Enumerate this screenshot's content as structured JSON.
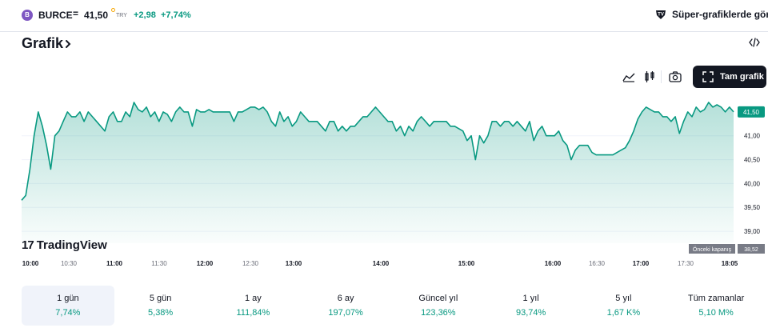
{
  "ticker": {
    "logo_text": "B",
    "symbol": "BURCE",
    "separator": "=",
    "price": "41,50",
    "currency": "TRY",
    "change": "+2,98",
    "change_pct": "+7,74%",
    "up_color": "#089981"
  },
  "super_charts_label": "Süper-grafiklerde görün",
  "section_title": "Grafik",
  "toolbar": {
    "full_chart_label": "Tam grafik",
    "icons": [
      "area-chart-icon",
      "candles-icon",
      "camera-icon",
      "fullscreen-icon"
    ]
  },
  "chart_data": {
    "type": "area",
    "title": "",
    "xlabel": "",
    "ylabel": "",
    "ylim": [
      38.75,
      41.8
    ],
    "x_ticks": [
      "10:00",
      "10:30",
      "11:00",
      "11:30",
      "12:00",
      "12:30",
      "13:00",
      "14:00",
      "15:00",
      "16:00",
      "16:30",
      "17:00",
      "17:30",
      "18:05"
    ],
    "y_ticks": [
      "41,00",
      "40,50",
      "40,00",
      "39,50",
      "39,00"
    ],
    "last_price_label": "41,50",
    "last_price": 41.5,
    "prev_close_label": "Önceki kapanış",
    "prev_close_value": "38,52",
    "prev_close": 38.52,
    "line_color": "#089981",
    "series": [
      {
        "values": [
          39.65,
          39.75,
          40.3,
          41.0,
          41.5,
          41.2,
          40.8,
          40.3,
          41.0,
          41.1,
          41.3,
          41.5,
          41.4,
          41.4,
          41.5,
          41.3,
          41.5,
          41.4,
          41.3,
          41.2,
          41.1,
          41.4,
          41.5,
          41.3,
          41.3,
          41.5,
          41.4,
          41.7,
          41.55,
          41.5,
          41.6,
          41.4,
          41.5,
          41.3,
          41.5,
          41.45,
          41.3,
          41.5,
          41.6,
          41.5,
          41.5,
          41.2,
          41.55,
          41.5,
          41.5,
          41.55,
          41.5,
          41.5,
          41.5,
          41.5,
          41.5,
          41.3,
          41.5,
          41.5,
          41.55,
          41.6,
          41.6,
          41.55,
          41.6,
          41.5,
          41.3,
          41.2,
          41.5,
          41.3,
          41.4,
          41.2,
          41.3,
          41.5,
          41.4,
          41.3,
          41.3,
          41.3,
          41.2,
          41.1,
          41.3,
          41.3,
          41.1,
          41.2,
          41.1,
          41.2,
          41.2,
          41.3,
          41.4,
          41.4,
          41.5,
          41.6,
          41.5,
          41.4,
          41.3,
          41.3,
          41.1,
          41.2,
          41.0,
          41.2,
          41.1,
          41.3,
          41.4,
          41.3,
          41.2,
          41.3,
          41.3,
          41.3,
          41.3,
          41.2,
          41.2,
          41.15,
          41.1,
          40.9,
          41.0,
          40.5,
          41.0,
          40.85,
          41.0,
          41.3,
          41.3,
          41.2,
          41.3,
          41.3,
          41.2,
          41.3,
          41.2,
          41.1,
          41.3,
          40.9,
          41.1,
          41.2,
          41.0,
          41.0,
          41.0,
          41.1,
          40.9,
          40.8,
          40.5,
          40.7,
          40.8,
          40.8,
          40.8,
          40.65,
          40.6,
          40.6,
          40.6,
          40.6,
          40.6,
          40.65,
          40.7,
          40.75,
          40.9,
          41.1,
          41.35,
          41.5,
          41.6,
          41.55,
          41.5,
          41.5,
          41.4,
          41.4,
          41.3,
          41.4,
          41.05,
          41.3,
          41.5,
          41.4,
          41.6,
          41.5,
          41.55,
          41.7,
          41.6,
          41.65,
          41.6,
          41.5,
          41.6,
          41.5
        ]
      }
    ]
  },
  "watermark": "TradingView",
  "periods": [
    {
      "label": "1 gün",
      "value": "7,74%"
    },
    {
      "label": "5 gün",
      "value": "5,38%"
    },
    {
      "label": "1 ay",
      "value": "111,84%"
    },
    {
      "label": "6 ay",
      "value": "197,07%"
    },
    {
      "label": "Güncel yıl",
      "value": "123,36%"
    },
    {
      "label": "1 yıl",
      "value": "93,74%"
    },
    {
      "label": "5 yıl",
      "value": "1,67 K%"
    },
    {
      "label": "Tüm zamanlar",
      "value": "5,10 M%"
    }
  ]
}
